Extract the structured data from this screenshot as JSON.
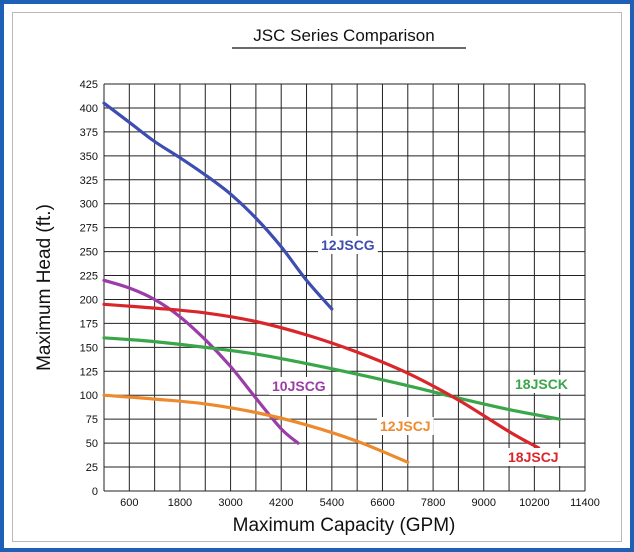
{
  "chart_data": {
    "type": "line",
    "title": "JSC Series Comparison",
    "xlabel": "Maximum Capacity (GPM)",
    "ylabel": "Maximum Head (ft.)",
    "xlim": [
      0,
      11400
    ],
    "ylim": [
      0,
      425
    ],
    "x_ticks": [
      600,
      1800,
      3000,
      4200,
      5400,
      6600,
      7800,
      9000,
      10200,
      11400
    ],
    "y_ticks": [
      0,
      25,
      50,
      75,
      100,
      125,
      150,
      175,
      200,
      225,
      250,
      275,
      300,
      325,
      350,
      375,
      400,
      425
    ],
    "grid": true,
    "series": [
      {
        "name": "12JSCG",
        "color": "#3d4db0",
        "points": [
          [
            0,
            405
          ],
          [
            600,
            385
          ],
          [
            1200,
            365
          ],
          [
            1800,
            348
          ],
          [
            2400,
            330
          ],
          [
            3000,
            310
          ],
          [
            3600,
            285
          ],
          [
            4200,
            255
          ],
          [
            4800,
            220
          ],
          [
            5400,
            190
          ]
        ]
      },
      {
        "name": "10JSCG",
        "color": "#9b3da8",
        "points": [
          [
            0,
            220
          ],
          [
            600,
            212
          ],
          [
            1200,
            200
          ],
          [
            1800,
            182
          ],
          [
            2400,
            158
          ],
          [
            3000,
            130
          ],
          [
            3600,
            97
          ],
          [
            4200,
            65
          ],
          [
            4600,
            50
          ]
        ]
      },
      {
        "name": "18JSCK",
        "color": "#3aa64a",
        "points": [
          [
            0,
            160
          ],
          [
            1200,
            156
          ],
          [
            2400,
            150
          ],
          [
            3600,
            143
          ],
          [
            4800,
            133
          ],
          [
            6000,
            122
          ],
          [
            7200,
            110
          ],
          [
            8400,
            97
          ],
          [
            9600,
            85
          ],
          [
            10800,
            75
          ]
        ]
      },
      {
        "name": "18JSCJ",
        "color": "#d9262b",
        "points": [
          [
            0,
            195
          ],
          [
            1200,
            191
          ],
          [
            2400,
            186
          ],
          [
            3600,
            177
          ],
          [
            4800,
            163
          ],
          [
            6000,
            145
          ],
          [
            7200,
            123
          ],
          [
            8400,
            95
          ],
          [
            9600,
            62
          ],
          [
            10300,
            45
          ]
        ]
      },
      {
        "name": "12JSCJ",
        "color": "#ee8a2e",
        "points": [
          [
            0,
            100
          ],
          [
            1200,
            96
          ],
          [
            2400,
            91
          ],
          [
            3600,
            82
          ],
          [
            4800,
            69
          ],
          [
            6000,
            52
          ],
          [
            7200,
            30
          ]
        ]
      }
    ]
  }
}
